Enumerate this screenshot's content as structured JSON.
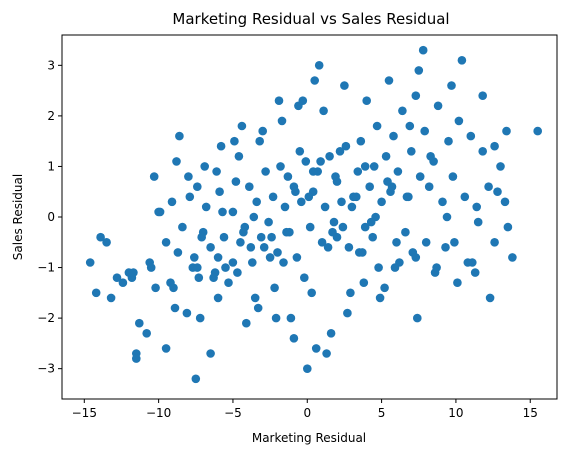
{
  "chart_data": {
    "type": "scatter",
    "title": "Marketing Residual vs Sales Residual",
    "xlabel": "Marketing Residual",
    "ylabel": "Sales Residual",
    "xlim": [
      -16.5,
      16.8
    ],
    "ylim": [
      -3.6,
      3.6
    ],
    "xticks": [
      -15,
      -10,
      -5,
      0,
      5,
      10,
      15
    ],
    "yticks": [
      -3,
      -2,
      -1,
      0,
      1,
      2,
      3
    ],
    "grid": false,
    "legend": "none",
    "point_color": "#1f77b4",
    "points_x": [
      -14.6,
      -13.9,
      -14.2,
      -13.2,
      -12.4,
      -11.8,
      -11.3,
      -10.6,
      -10.2,
      -9.9,
      -9.5,
      -9.2,
      -8.7,
      -8.4,
      -8.1,
      -7.9,
      -7.6,
      -7.3,
      -7.0,
      -6.8,
      -6.5,
      -6.2,
      -5.9,
      -5.6,
      -5.3,
      -5.0,
      -4.8,
      -4.5,
      -4.2,
      -3.9,
      -3.7,
      -3.4,
      -3.1,
      -2.8,
      -2.6,
      -2.3,
      -2.0,
      -1.8,
      -1.5,
      -1.2,
      -0.9,
      -0.7,
      -0.4,
      -0.1,
      0.2,
      0.4,
      0.7,
      1.0,
      1.2,
      1.5,
      1.8,
      2.0,
      2.3,
      2.6,
      2.8,
      3.1,
      3.4,
      3.6,
      3.9,
      4.2,
      4.5,
      4.7,
      5.0,
      5.3,
      5.6,
      5.8,
      6.1,
      6.4,
      6.7,
      7.0,
      7.3,
      7.6,
      7.9,
      8.2,
      8.5,
      8.8,
      9.1,
      9.5,
      9.8,
      10.2,
      10.6,
      11.0,
      11.4,
      11.8,
      12.2,
      12.6,
      13.0,
      13.4,
      13.8,
      15.5,
      -11.5,
      -11.5,
      -7.5,
      -9.5,
      -6.5,
      -10.8,
      -8.9,
      -7.2,
      -6.0,
      -5.5,
      -4.1,
      -3.3,
      -2.2,
      -1.1,
      0.3,
      1.6,
      2.7,
      3.8,
      4.9,
      6.2,
      7.4,
      8.6,
      9.9,
      11.1,
      12.3,
      13.5,
      0.8,
      0.5,
      -0.6,
      -1.9,
      -3.0,
      -4.4,
      -5.8,
      -6.9,
      -8.0,
      -9.1,
      -10.3,
      -12.0,
      -12.8,
      -13.5,
      7.8,
      7.5,
      10.4,
      9.7,
      11.8,
      12.6,
      11.5,
      13.3,
      8.3,
      6.9,
      5.5,
      4.0,
      2.5,
      1.1,
      -0.3,
      -1.7,
      -3.2,
      -4.6,
      -6.1,
      -7.4,
      -8.8,
      -10.0,
      2.0,
      3.5,
      4.8,
      -2.5,
      -3.8,
      -5.0,
      -6.3,
      -7.7,
      -9.0,
      -10.5,
      -11.7,
      -1.4,
      -0.2,
      1.3,
      2.9,
      4.4,
      5.9,
      7.1,
      8.7,
      10.1,
      11.3,
      12.8,
      0.0,
      0.6,
      -0.9,
      -2.1,
      -3.5,
      -4.9,
      1.9,
      3.3,
      4.6,
      6.0,
      7.3,
      9.3,
      0.9,
      -1.6,
      -2.9,
      -4.3,
      -5.7,
      -7.1,
      2.4,
      3.7,
      5.2,
      6.6,
      8.0,
      9.4,
      10.8,
      -0.5,
      1.4,
      -3.6,
      -2.4,
      -1.3,
      0.1,
      1.7,
      3.0,
      4.3,
      5.7,
      -4.7,
      -6.0,
      -7.4,
      -8.6,
      -0.8,
      0.4,
      2.2,
      3.9,
      5.4,
      6.8
    ],
    "points_y": [
      -0.9,
      -0.4,
      -1.5,
      -1.6,
      -1.3,
      -1.2,
      -2.1,
      -0.9,
      -1.4,
      0.1,
      -0.5,
      -1.3,
      -0.7,
      -0.2,
      -1.9,
      0.4,
      -0.8,
      -1.2,
      -0.3,
      0.2,
      -0.6,
      -1.1,
      0.5,
      -0.4,
      -1.3,
      0.1,
      0.7,
      -0.5,
      -0.2,
      0.6,
      -0.9,
      0.3,
      -0.4,
      0.9,
      -0.1,
      0.4,
      -0.7,
      1.0,
      0.2,
      -0.3,
      0.6,
      -0.8,
      0.3,
      1.1,
      -0.2,
      0.5,
      0.9,
      -0.5,
      0.2,
      1.2,
      -0.1,
      0.7,
      0.3,
      1.4,
      -0.6,
      0.4,
      0.9,
      1.5,
      -0.2,
      0.6,
      1.0,
      1.8,
      0.3,
      1.2,
      0.5,
      1.6,
      0.9,
      2.1,
      0.4,
      1.3,
      2.4,
      0.8,
      1.7,
      0.6,
      1.1,
      2.2,
      0.3,
      1.5,
      0.8,
      1.9,
      0.4,
      1.6,
      0.2,
      1.3,
      0.6,
      -0.5,
      1.0,
      1.7,
      -0.8,
      1.7,
      -2.7,
      -2.8,
      -3.2,
      -2.6,
      -2.7,
      -2.3,
      -1.8,
      -2.0,
      -1.6,
      -1.0,
      -2.1,
      -1.8,
      -1.4,
      -2.0,
      -1.5,
      -2.3,
      -1.9,
      -1.3,
      -1.6,
      -0.9,
      -2.0,
      -1.1,
      -0.5,
      -0.9,
      -1.6,
      -0.2,
      3.0,
      2.7,
      2.2,
      2.3,
      1.7,
      1.8,
      1.4,
      1.0,
      0.8,
      0.3,
      0.8,
      -1.1,
      -1.2,
      -0.5,
      3.3,
      2.9,
      3.1,
      2.6,
      2.4,
      1.4,
      -0.1,
      0.3,
      1.2,
      1.8,
      2.7,
      2.3,
      2.6,
      2.1,
      2.3,
      1.9,
      1.5,
      1.2,
      0.9,
      0.6,
      1.1,
      0.1,
      -0.4,
      -0.7,
      -1.0,
      -0.8,
      -0.6,
      -0.9,
      -1.2,
      -1.0,
      -1.4,
      -1.0,
      -1.1,
      -0.3,
      -1.2,
      -2.7,
      -1.5,
      -0.4,
      -1.0,
      -0.7,
      -1.0,
      -1.3,
      -1.1,
      0.5,
      -3.0,
      -2.6,
      -2.4,
      -2.0,
      -1.6,
      1.5,
      0.8,
      0.4,
      0.0,
      -0.5,
      -0.8,
      -0.6,
      1.1,
      -0.9,
      -0.6,
      -0.3,
      0.1,
      -0.4,
      -0.2,
      -0.7,
      -1.4,
      -0.3,
      -0.5,
      0.0,
      -0.9,
      1.3,
      -0.6,
      0.0,
      -0.4,
      0.8,
      0.4,
      -0.3,
      0.2,
      -0.1,
      0.6,
      -1.1,
      -0.8,
      -1.0,
      1.6,
      0.5,
      0.9,
      1.3,
      1.0,
      0.7,
      0.4
    ]
  }
}
